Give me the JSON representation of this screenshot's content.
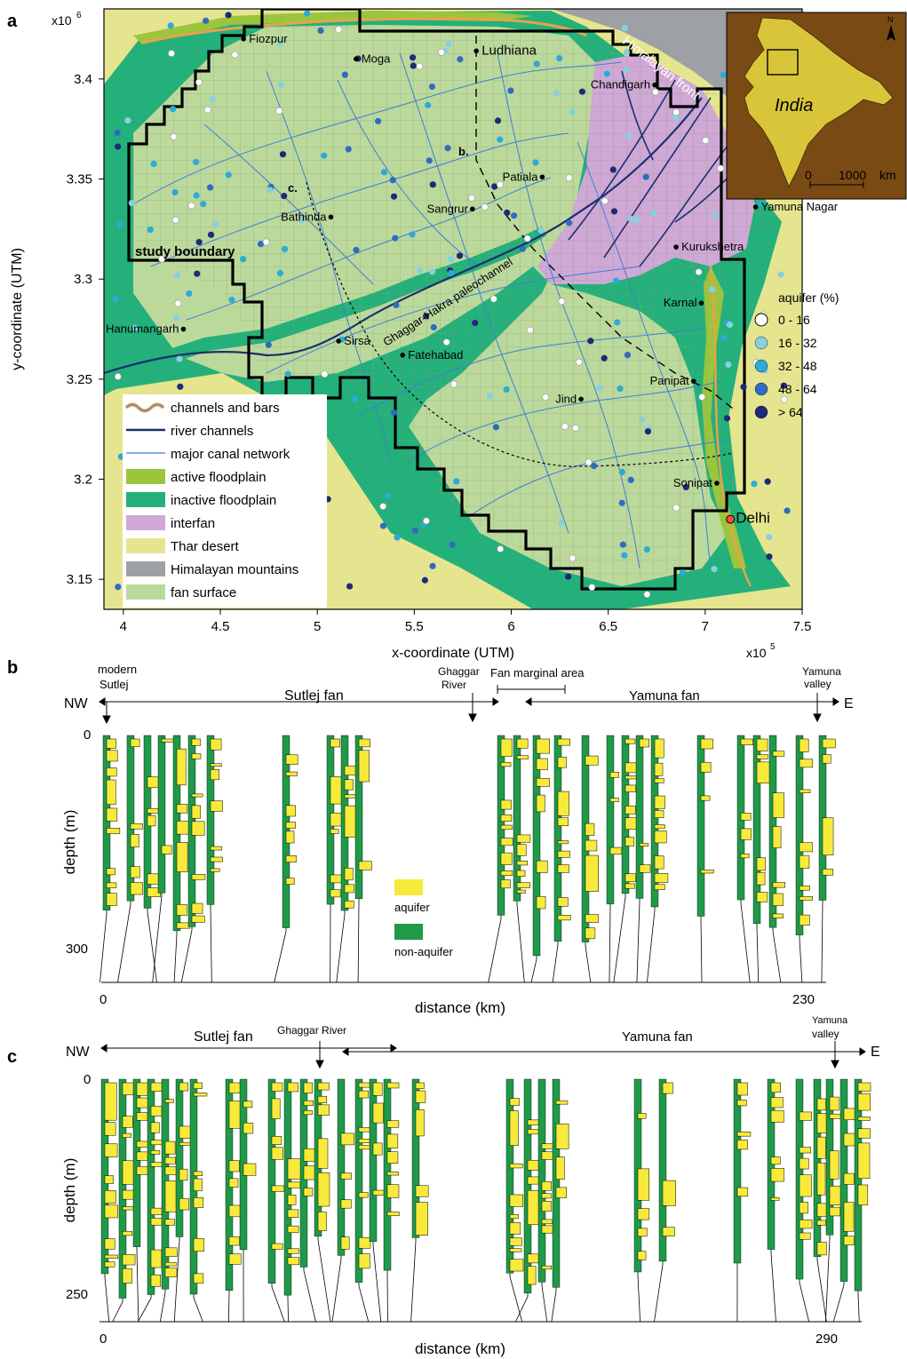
{
  "panel_a": {
    "label": "a",
    "x_exponent": "x10",
    "x_exponent_power": "5",
    "y_exponent": "x10",
    "y_exponent_power": "6",
    "xlabel": "x-coordinate (UTM)",
    "ylabel": "y-coordinate (UTM)",
    "x_ticks": [
      "4",
      "4.5",
      "5",
      "5.5",
      "6",
      "6.5",
      "7",
      "7.5"
    ],
    "y_ticks": [
      "3.4",
      "3.35",
      "3.3",
      "3.25",
      "3.2",
      "3.15"
    ],
    "study_boundary_label": "study boundary",
    "paleochannel_label": "Ghaggar-Hakra paleochannel",
    "front_label": "Himalayan front",
    "transect_b_label": "b.",
    "transect_c_label": "c.",
    "cities": [
      {
        "name": "Fiozpur",
        "x": 4.62,
        "y": 3.42
      },
      {
        "name": "Moga",
        "x": 5.2,
        "y": 3.41
      },
      {
        "name": "Ludhiana",
        "x": 5.82,
        "y": 3.414
      },
      {
        "name": "Chandigarh",
        "x": 6.74,
        "y": 3.397
      },
      {
        "name": "Patiala",
        "x": 6.16,
        "y": 3.351
      },
      {
        "name": "Sangrur",
        "x": 5.8,
        "y": 3.335
      },
      {
        "name": "Bathinda",
        "x": 5.07,
        "y": 3.331
      },
      {
        "name": "Yamuna Nagar",
        "x": 7.26,
        "y": 3.336
      },
      {
        "name": "Kurukshetra",
        "x": 6.85,
        "y": 3.316
      },
      {
        "name": "Karnal",
        "x": 6.98,
        "y": 3.288
      },
      {
        "name": "Hanumangarh",
        "x": 4.31,
        "y": 3.275
      },
      {
        "name": "Sirsa",
        "x": 5.11,
        "y": 3.269
      },
      {
        "name": "Fatehabad",
        "x": 5.44,
        "y": 3.262
      },
      {
        "name": "Panipat",
        "x": 6.94,
        "y": 3.249
      },
      {
        "name": "Jind",
        "x": 6.36,
        "y": 3.24
      },
      {
        "name": "Sonipat",
        "x": 7.06,
        "y": 3.198
      },
      {
        "name": "Delhi",
        "x": 7.13,
        "y": 3.18
      }
    ],
    "legend": [
      {
        "label": "channels and bars",
        "kind": "bars"
      },
      {
        "label": "river channels",
        "kind": "river"
      },
      {
        "label": "major canal network",
        "kind": "canal"
      },
      {
        "label": "active floodplain",
        "color": "#9bc53d"
      },
      {
        "label": "inactive floodplain",
        "color": "#24b07a"
      },
      {
        "label": "interfan",
        "color": "#cfa8d6"
      },
      {
        "label": "Thar desert",
        "color": "#e6e58f"
      },
      {
        "label": "Himalayan mountains",
        "color": "#9da1a5"
      },
      {
        "label": "fan surface",
        "color": "#bcd99c"
      }
    ],
    "aquifer_legend": {
      "title": "aquifer (%)",
      "classes": [
        {
          "label": "0 - 16",
          "color": "#ffffff"
        },
        {
          "label": "16 - 32",
          "color": "#86d0df"
        },
        {
          "label": "32 - 48",
          "color": "#2eaad6"
        },
        {
          "label": "48 - 64",
          "color": "#2f6cc0"
        },
        {
          "label": "> 64",
          "color": "#1d2a78"
        }
      ]
    },
    "inset": {
      "country_label": "India",
      "north_label": "N",
      "scale_start": "0",
      "scale_end": "1000",
      "scale_unit": "km"
    }
  },
  "panel_b": {
    "label": "b",
    "left_dir": "NW",
    "right_dir": "E",
    "annotations": [
      "modern",
      "Sutlej",
      "Sutlej fan",
      "Ghaggar",
      "River",
      "Fan marginal area",
      "Yamuna fan",
      "Yamuna",
      "valley"
    ],
    "ylabel": "depth (m)",
    "y_ticks": [
      "0",
      "300"
    ],
    "xlabel": "distance (km)",
    "x_ticks": [
      "0",
      "230"
    ],
    "legend": [
      {
        "label": "aquifer",
        "color": "#f7ea3a"
      },
      {
        "label": "non-aquifer",
        "color": "#1f9a49"
      }
    ],
    "max_depth": 340,
    "max_distance": 230
  },
  "panel_c": {
    "label": "c",
    "left_dir": "NW",
    "right_dir": "E",
    "annotations": [
      "Sutlej fan",
      "Ghaggar River",
      "Yamuna fan",
      "Yamuna",
      "valley"
    ],
    "ylabel": "depth (m)",
    "y_ticks": [
      "0",
      "250"
    ],
    "xlabel": "distance (km)",
    "x_ticks": [
      "0",
      "290"
    ],
    "max_depth": 300,
    "max_distance": 290
  },
  "colors": {
    "aquifer": "#f7ea3a",
    "non_aquifer": "#1f9a49",
    "fan_surface": "#bcd99c",
    "inactive_floodplain": "#24b07a",
    "active_floodplain": "#9bc53d",
    "interfan": "#cfa8d6",
    "thar": "#e6e58f",
    "mountains": "#9da1a5",
    "india": "#d8c53a",
    "inset_bg": "#7a4a14",
    "river": "#1c2f6e",
    "canal": "#3d7fd6"
  }
}
